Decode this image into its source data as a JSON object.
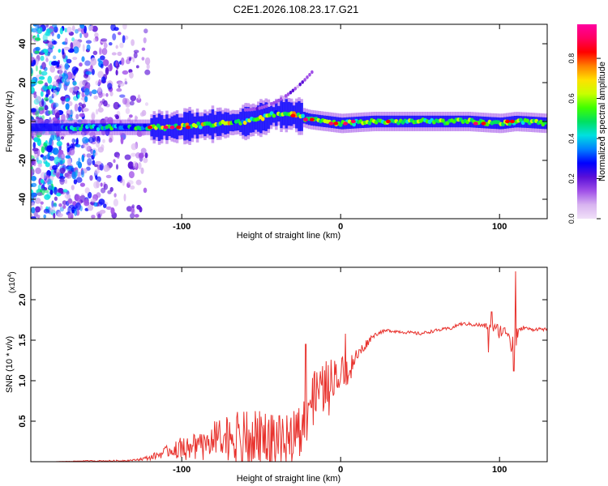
{
  "title": "C2E1.2026.108.23.17.G21",
  "chart_data": [
    {
      "type": "heatmap",
      "xlabel": "Height of straight line (km)",
      "ylabel": "Frequency (Hz)",
      "xlim": [
        -195,
        130
      ],
      "ylim": [
        -50,
        50
      ],
      "xticks": [
        -100,
        0,
        100
      ],
      "xtick_labels": [
        "-100",
        "0",
        "100"
      ],
      "yticks": [
        -40,
        -20,
        0,
        20,
        40
      ],
      "ytick_labels": [
        "-40",
        "-20",
        "0",
        "20",
        "40"
      ],
      "colorbar": {
        "label": "Normalized spectral amplitude",
        "range": [
          0,
          0.97
        ],
        "ticks": [
          0.0,
          0.2,
          0.4,
          0.6,
          0.8
        ],
        "tick_labels": [
          "0.0",
          "0.2",
          "0.4",
          "0.6",
          "0.8"
        ],
        "colors": [
          "#f0e0f8",
          "#d8b4f0",
          "#a050e8",
          "#5a10d8",
          "#0000ff",
          "#0080ff",
          "#00e0e0",
          "#00e060",
          "#40ff00",
          "#c8ff00",
          "#ffe000",
          "#ff8000",
          "#ff0000",
          "#ff0060",
          "#ff00a0"
        ]
      },
      "ridge": {
        "x": [
          -190,
          -160,
          -130,
          -110,
          -90,
          -75,
          -60,
          -50,
          -40,
          -33,
          -28,
          -20,
          -10,
          0,
          20,
          40,
          60,
          80,
          100,
          110,
          130
        ],
        "freq": [
          -3,
          -3,
          -3,
          -3,
          -2,
          -1,
          0,
          2,
          4,
          4,
          3,
          1,
          0,
          -1,
          0,
          0,
          0,
          0,
          -1,
          0,
          -1
        ]
      }
    },
    {
      "type": "line",
      "xlabel": "Height of straight line (km)",
      "ylabel": "SNR (10 * v/v)",
      "y_multiplier": "(x10",
      "y_exponent": "4",
      "xlim": [
        -195,
        130
      ],
      "ylim": [
        0,
        2.4
      ],
      "xticks": [
        -100,
        0,
        100
      ],
      "xtick_labels": [
        "-100",
        "0",
        "100"
      ],
      "yticks": [
        0.5,
        1.0,
        1.5,
        2.0
      ],
      "ytick_labels": [
        "0.5",
        "1.0",
        "1.5",
        "2.0"
      ],
      "series": [
        {
          "name": "SNR",
          "color": "#e8322d",
          "x": [
            -195,
            -180,
            -160,
            -140,
            -130,
            -120,
            -110,
            -100,
            -90,
            -80,
            -70,
            -60,
            -50,
            -45,
            -40,
            -35,
            -30,
            -25,
            -20,
            -15,
            -10,
            -5,
            0,
            5,
            10,
            20,
            25,
            30,
            40,
            50,
            55,
            60,
            70,
            75,
            80,
            90,
            95,
            100,
            105,
            108,
            112,
            115,
            120,
            125,
            130
          ],
          "y": [
            0.0,
            0.0,
            0.01,
            0.01,
            0.02,
            0.05,
            0.12,
            0.2,
            0.25,
            0.3,
            0.35,
            0.35,
            0.33,
            0.35,
            0.3,
            0.3,
            0.4,
            0.55,
            0.75,
            0.85,
            0.95,
            1.05,
            1.1,
            1.2,
            1.3,
            1.55,
            1.6,
            1.62,
            1.6,
            1.58,
            1.6,
            1.62,
            1.65,
            1.7,
            1.7,
            1.68,
            1.65,
            1.62,
            1.6,
            1.55,
            1.6,
            1.66,
            1.63,
            1.64,
            1.63
          ],
          "noise": [
            0.0,
            0.0,
            0.005,
            0.01,
            0.01,
            0.03,
            0.07,
            0.12,
            0.15,
            0.2,
            0.25,
            0.28,
            0.3,
            0.35,
            0.3,
            0.25,
            0.25,
            0.3,
            0.3,
            0.3,
            0.3,
            0.25,
            0.2,
            0.15,
            0.1,
            0.03,
            0.02,
            0.02,
            0.02,
            0.02,
            0.02,
            0.02,
            0.02,
            0.02,
            0.02,
            0.03,
            0.05,
            0.1,
            0.05,
            0.25,
            0.05,
            0.02,
            0.02,
            0.02,
            0.02
          ]
        }
      ],
      "spikes": [
        {
          "x": 93,
          "y": 1.35
        },
        {
          "x": 95,
          "y": 1.85
        },
        {
          "x": 109,
          "y": 1.12
        },
        {
          "x": 110,
          "y": 2.35
        },
        {
          "x": -22,
          "y": 1.45
        },
        {
          "x": 3,
          "y": 1.58
        }
      ]
    }
  ]
}
